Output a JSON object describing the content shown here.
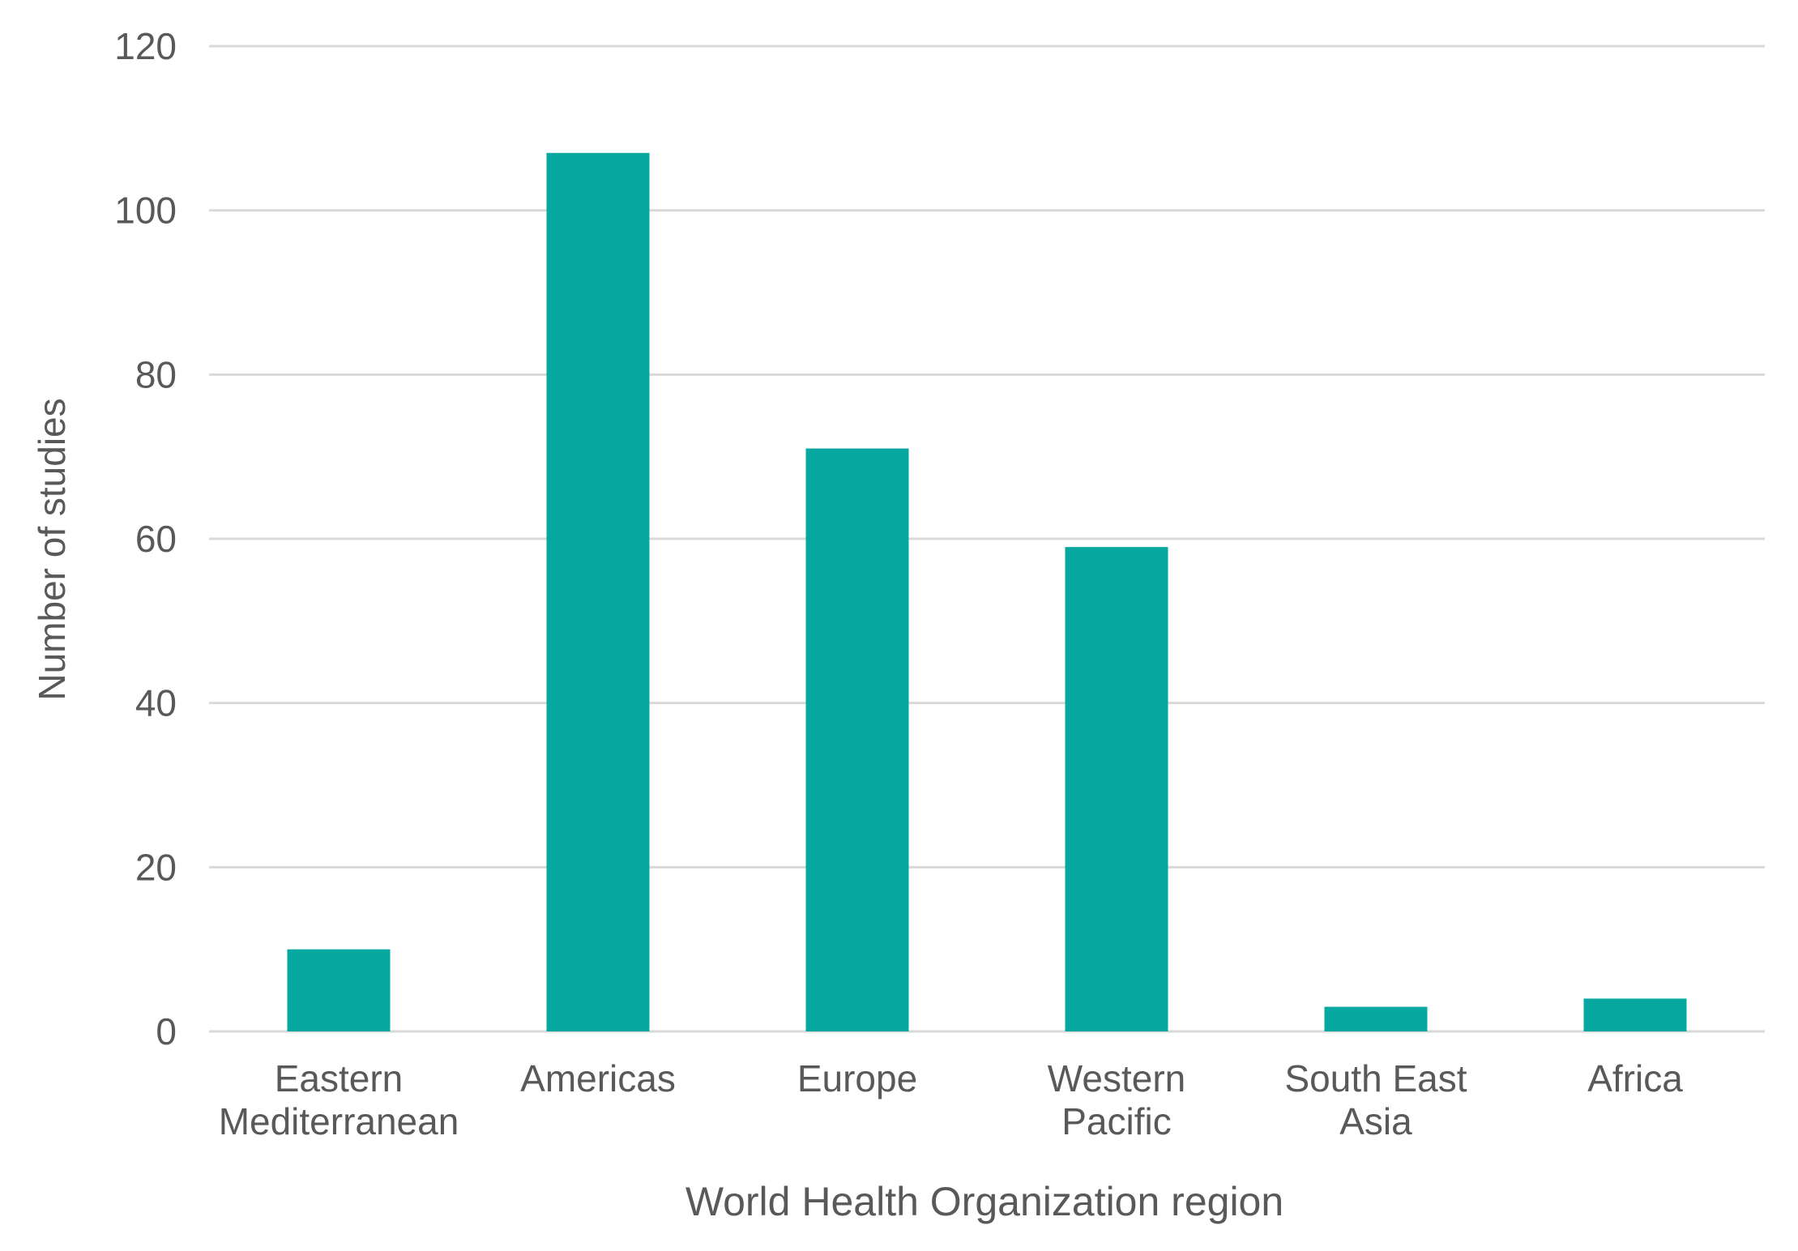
{
  "chart_data": {
    "type": "bar",
    "title": "",
    "xlabel": "World Health Organization region",
    "ylabel": "Number of studies",
    "categories": [
      [
        "Eastern",
        "Mediterranean"
      ],
      [
        "Americas"
      ],
      [
        "Europe"
      ],
      [
        "Western",
        "Pacific"
      ],
      [
        "South East",
        "Asia"
      ],
      [
        "Africa"
      ]
    ],
    "values": [
      10,
      107,
      71,
      59,
      3,
      4
    ],
    "ylim": [
      0,
      120
    ],
    "yticks": [
      0,
      20,
      40,
      60,
      80,
      100,
      120
    ],
    "grid": true,
    "legend": "none",
    "bar_color": "#07A8A0",
    "grid_color": "#D9D9D9",
    "text_color": "#595959"
  }
}
